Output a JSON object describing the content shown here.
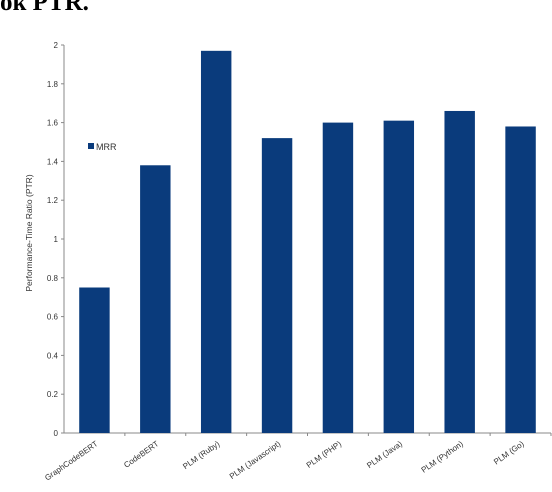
{
  "header_fragment": "ok PTR.",
  "chart_data": {
    "type": "bar",
    "categories": [
      "GraphCodeBERT",
      "CodeBERT",
      "PLM (Ruby)",
      "PLM (Javascript)",
      "PLM (PHP)",
      "PLM (Java)",
      "PLM (Python)",
      "PLM (Go)"
    ],
    "series": [
      {
        "name": "MRR",
        "values": [
          0.75,
          1.38,
          1.97,
          1.52,
          1.6,
          1.61,
          1.66,
          1.58
        ],
        "color": "#0a3b7c"
      }
    ],
    "title": "",
    "xlabel": "",
    "ylabel": "Performance-Time Ratio (PTR)",
    "ylim": [
      0,
      2
    ],
    "yticks": [
      0,
      0.2,
      0.4,
      0.6,
      0.8,
      1,
      1.2,
      1.4,
      1.6,
      1.8,
      2
    ],
    "ytick_labels": [
      "0",
      "0.2",
      "0.4",
      "0.6",
      "0.8",
      "1",
      "1.2",
      "1.4",
      "1.6",
      "1.8",
      "2"
    ],
    "grid": false,
    "legend_position": "left"
  }
}
